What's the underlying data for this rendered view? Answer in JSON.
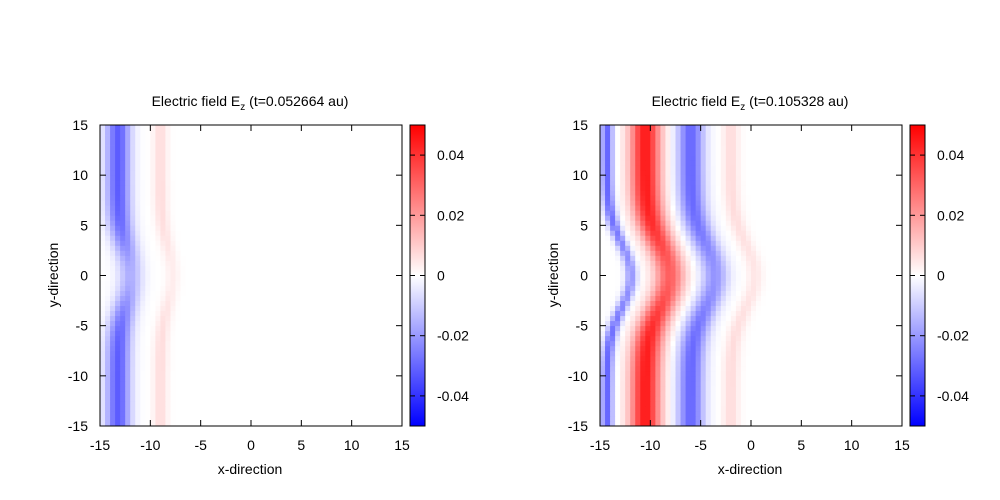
{
  "colors": {
    "low": "#0000ff",
    "mid": "#ffffff",
    "high": "#ff0000",
    "frame": "#000000"
  },
  "chart_data": [
    {
      "type": "heatmap",
      "title": "Electric field E",
      "title_subscript": "z",
      "title_suffix": " (t=0.052664 au)",
      "xlabel": "x-direction",
      "ylabel": "y-direction",
      "xlim": [
        -15,
        15
      ],
      "ylim": [
        -15,
        15
      ],
      "xticks": [
        -15,
        -10,
        -5,
        0,
        5,
        10,
        15
      ],
      "yticks": [
        -15,
        -10,
        -5,
        0,
        5,
        10,
        15
      ],
      "cbar_range": [
        -0.05,
        0.05
      ],
      "cbar_ticks": [
        -0.04,
        -0.02,
        0,
        0.02,
        0.04
      ],
      "cbar_tick_labels": [
        "-0.04",
        "-0.02",
        "0",
        "0.02",
        "0.04"
      ],
      "field": {
        "features": [
          {
            "kind": "band",
            "x_center": -13.2,
            "width": 1.2,
            "amplitude": -0.032
          },
          {
            "kind": "band",
            "x_center": -9,
            "width": 0.7,
            "amplitude": 0.007
          }
        ],
        "curvature": {
          "y_center": 0,
          "y_width": 4,
          "shift": 1.2,
          "amplitude_drop": 0.5
        }
      }
    },
    {
      "type": "heatmap",
      "title": "Electric field E",
      "title_subscript": "z",
      "title_suffix": " (t=0.105328 au)",
      "xlabel": "x-direction",
      "ylabel": "y-direction",
      "xlim": [
        -15,
        15
      ],
      "ylim": [
        -15,
        15
      ],
      "xticks": [
        -15,
        -10,
        -5,
        0,
        5,
        10,
        15
      ],
      "yticks": [
        -15,
        -10,
        -5,
        0,
        5,
        10,
        15
      ],
      "cbar_range": [
        -0.05,
        0.05
      ],
      "cbar_ticks": [
        -0.04,
        -0.02,
        0,
        0.02,
        0.04
      ],
      "cbar_tick_labels": [
        "-0.04",
        "-0.02",
        "0",
        "0.02",
        "0.04"
      ],
      "field": {
        "features": [
          {
            "kind": "band",
            "x_center": -14.3,
            "width": 0.6,
            "amplitude": -0.03
          },
          {
            "kind": "band",
            "x_center": -10.5,
            "width": 1.5,
            "amplitude": 0.045
          },
          {
            "kind": "band",
            "x_center": -6,
            "width": 1.3,
            "amplitude": -0.03
          },
          {
            "kind": "band",
            "x_center": -2,
            "width": 0.8,
            "amplitude": 0.007
          }
        ],
        "curvature": {
          "y_center": 0,
          "y_width": 4.5,
          "shift": 2.4,
          "amplitude_drop": 0.3
        }
      }
    }
  ]
}
